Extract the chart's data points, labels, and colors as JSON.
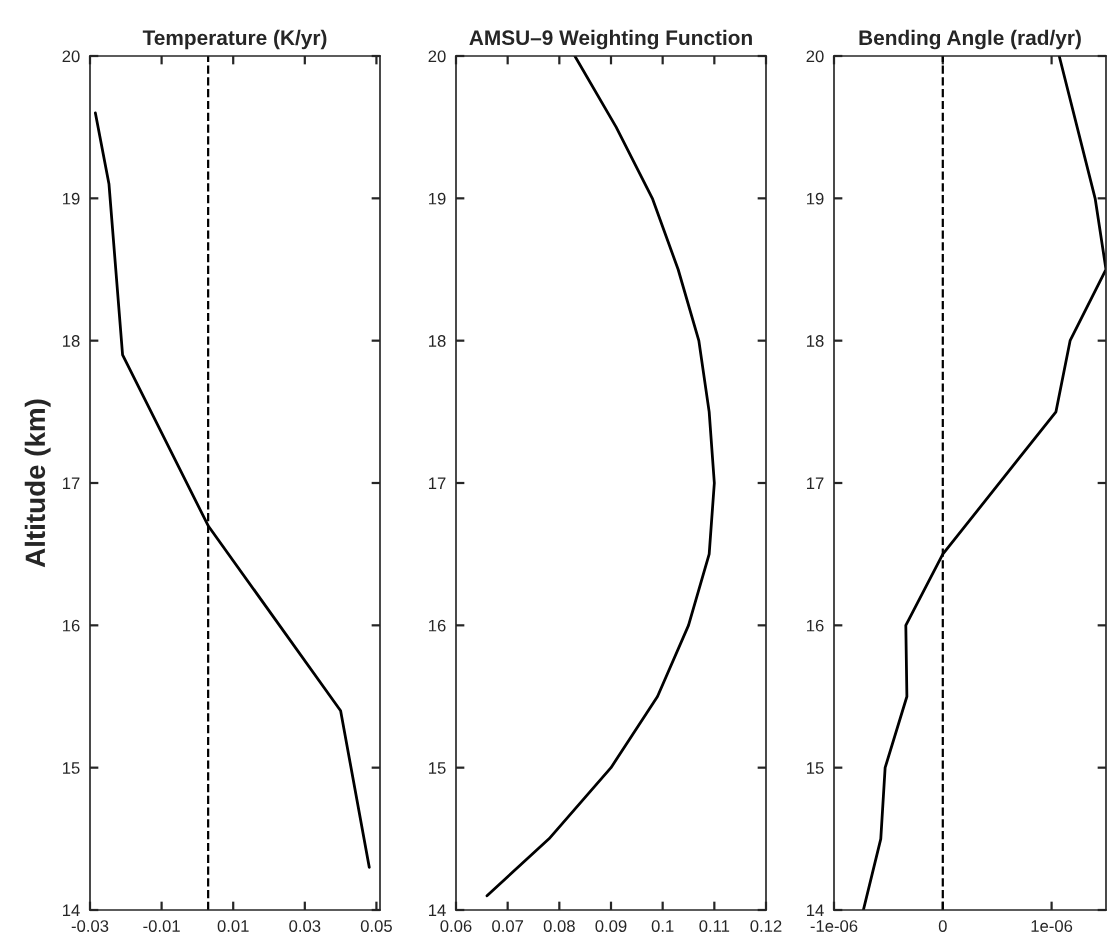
{
  "chart_data": [
    {
      "type": "line",
      "title": "Temperature (K/yr)",
      "ylabel": "Altitude (km)",
      "orientation": "horizontal",
      "x": [
        19.6,
        19.1,
        17.9,
        16.7,
        15.4,
        14.3
      ],
      "series": [
        {
          "color": "#000000",
          "values": [
            -0.0285,
            -0.0247,
            -0.0209,
            0.003,
            0.04,
            0.048
          ]
        }
      ],
      "xlim": [
        -0.03,
        0.051
      ],
      "xticks": [
        -0.03,
        -0.01,
        0.01,
        0.03,
        0.05
      ],
      "ylim": [
        14,
        20
      ],
      "yticks": [
        14,
        15,
        16,
        17,
        18,
        19,
        20
      ],
      "ref_lines": [
        {
          "axis": "x",
          "value": 0.003,
          "color": "#000000",
          "line_style": "dashed"
        }
      ],
      "grid": false,
      "legend": false
    },
    {
      "type": "line",
      "title": "AMSU–9 Weighting Function",
      "orientation": "horizontal",
      "x": [
        20,
        19.5,
        19,
        18.5,
        18,
        17.5,
        17,
        16.5,
        16,
        15.5,
        15,
        14.5,
        14.1
      ],
      "series": [
        {
          "color": "#000000",
          "values": [
            0.083,
            0.091,
            0.098,
            0.103,
            0.107,
            0.109,
            0.11,
            0.109,
            0.105,
            0.099,
            0.09,
            0.078,
            0.066
          ]
        }
      ],
      "xlim": [
        0.06,
        0.12
      ],
      "xticks": [
        0.06,
        0.07,
        0.08,
        0.09,
        0.1,
        0.11,
        0.12
      ],
      "ylim": [
        14,
        20
      ],
      "yticks": [
        14,
        15,
        16,
        17,
        18,
        19,
        20
      ],
      "grid": false,
      "legend": false
    },
    {
      "type": "line",
      "title": "Bending Angle (rad/yr)",
      "orientation": "horizontal",
      "x": [
        20,
        19,
        18.5,
        18,
        17.5,
        16.5,
        16,
        15.5,
        15,
        14.5,
        14
      ],
      "series": [
        {
          "color": "#000000",
          "values": [
            1.07e-06,
            1.4e-06,
            1.5e-06,
            1.17e-06,
            1.04e-06,
            0,
            -3.4e-07,
            -3.3e-07,
            -5.3e-07,
            -5.7e-07,
            -7.3e-07
          ]
        }
      ],
      "xlim": [
        -1e-06,
        1.5e-06
      ],
      "xticks": [
        -1e-06,
        0,
        1e-06
      ],
      "ylim": [
        14,
        20
      ],
      "yticks": [
        14,
        15,
        16,
        17,
        18,
        19,
        20
      ],
      "ref_lines": [
        {
          "axis": "x",
          "value": 0,
          "color": "#000000",
          "line_style": "dashed"
        }
      ],
      "grid": false,
      "legend": false
    }
  ]
}
